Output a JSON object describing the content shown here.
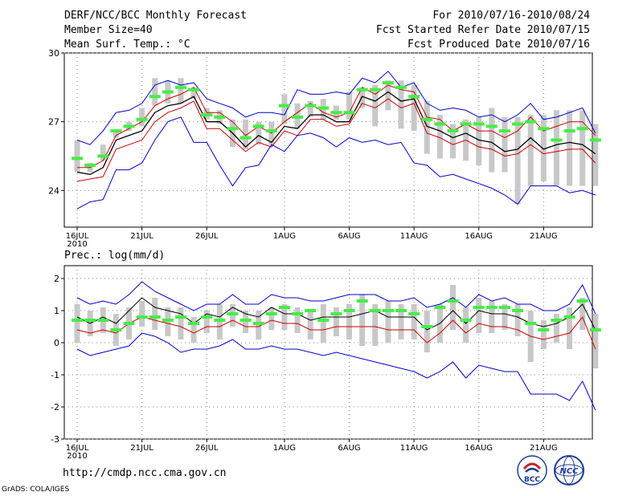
{
  "header": {
    "title": "DERF/NCC/BCC Monthly Forecast",
    "member_size": "Member Size=40",
    "variable": "Mean Surf. Temp.: °C",
    "period": "For 2010/07/16-2010/08/24",
    "started": "Fcst Started Refer Date 2010/07/15",
    "produced": "Fcst Produced Date 2010/07/16"
  },
  "footer": {
    "url": "http://cmdp.ncc.cma.gov.cn",
    "credit": "GrADS: COLA/IGES",
    "logo_left_text": "BCC",
    "logo_right_text": "NCC"
  },
  "colors": {
    "envelope": "#0000cc",
    "ensemble_mean": "#000000",
    "second_line": "#cc0000",
    "bars": "#c8c8c8",
    "dash": "#44ee44"
  },
  "chart_data": [
    {
      "type": "line",
      "title": "Mean Surf. Temp.: °C",
      "xlabel": "",
      "ylabel": "°C",
      "ylim": [
        22.4,
        30
      ],
      "yticks": [
        24,
        27,
        30
      ],
      "x_start_day": 1,
      "xticks": [
        {
          "day": 1,
          "label": "16JUL",
          "sub": "2010"
        },
        {
          "day": 6,
          "label": "21JUL",
          "sub": ""
        },
        {
          "day": 11,
          "label": "26JUL",
          "sub": ""
        },
        {
          "day": 17,
          "label": "1AUG",
          "sub": ""
        },
        {
          "day": 22,
          "label": "6AUG",
          "sub": ""
        },
        {
          "day": 27,
          "label": "11AUG",
          "sub": ""
        },
        {
          "day": 32,
          "label": "16AUG",
          "sub": ""
        },
        {
          "day": 37,
          "label": "21AUG",
          "sub": ""
        }
      ],
      "grid": "dotted",
      "series": [
        {
          "name": "max",
          "color": "#0000cc",
          "values": [
            26.2,
            26.0,
            26.6,
            27.4,
            27.5,
            27.8,
            28.6,
            28.8,
            28.6,
            28.7,
            28.0,
            27.8,
            27.6,
            27.2,
            27.4,
            27.4,
            27.3,
            28.4,
            28.2,
            28.2,
            28.3,
            28.2,
            28.9,
            28.7,
            29.2,
            28.5,
            28.7,
            27.8,
            27.5,
            27.6,
            27.5,
            27.2,
            27.3,
            27.0,
            27.3,
            27.8,
            27.1,
            27.2,
            27.4,
            27.6,
            26.5
          ]
        },
        {
          "name": "upper",
          "color": "#cc0000",
          "values": [
            25.0,
            25.0,
            25.3,
            26.4,
            26.7,
            27.0,
            27.7,
            28.0,
            28.2,
            28.5,
            27.4,
            27.4,
            27.0,
            26.4,
            26.8,
            26.5,
            27.0,
            27.4,
            27.8,
            27.4,
            27.2,
            27.4,
            28.5,
            28.2,
            28.6,
            28.4,
            28.3,
            27.2,
            27.1,
            26.6,
            26.9,
            26.6,
            26.6,
            26.3,
            26.6,
            27.2,
            26.6,
            26.8,
            27.0,
            27.0,
            26.4
          ]
        },
        {
          "name": "mean",
          "color": "#000000",
          "values": [
            24.8,
            24.7,
            25.0,
            26.2,
            26.4,
            26.6,
            27.4,
            27.7,
            27.8,
            28.1,
            27.0,
            27.0,
            26.5,
            25.9,
            26.4,
            26.1,
            26.8,
            26.7,
            27.3,
            27.3,
            27.0,
            27.0,
            28.1,
            27.9,
            28.3,
            27.9,
            28.0,
            26.8,
            26.6,
            26.3,
            26.5,
            26.2,
            26.1,
            25.7,
            25.8,
            26.3,
            25.8,
            26.0,
            26.1,
            26.0,
            25.6
          ]
        },
        {
          "name": "lower",
          "color": "#cc0000",
          "values": [
            24.4,
            24.5,
            24.6,
            25.8,
            26.0,
            26.2,
            27.0,
            27.4,
            27.6,
            27.9,
            26.7,
            26.7,
            26.2,
            25.7,
            26.1,
            25.9,
            26.6,
            26.4,
            27.1,
            27.1,
            26.8,
            26.9,
            27.8,
            27.6,
            28.0,
            27.6,
            27.8,
            26.5,
            26.3,
            26.0,
            26.2,
            25.9,
            25.8,
            25.5,
            25.6,
            26.0,
            25.6,
            25.7,
            25.8,
            25.8,
            25.2
          ]
        },
        {
          "name": "min",
          "color": "#0000cc",
          "values": [
            23.2,
            23.5,
            23.6,
            24.9,
            24.9,
            25.2,
            26.2,
            27.0,
            27.2,
            26.1,
            26.1,
            25.1,
            24.2,
            25.0,
            25.1,
            26.0,
            25.7,
            26.4,
            26.5,
            26.3,
            25.9,
            26.3,
            26.1,
            26.2,
            26.0,
            26.1,
            25.2,
            25.1,
            24.6,
            24.7,
            24.5,
            24.3,
            24.1,
            23.8,
            23.4,
            24.2,
            24.2,
            24.2,
            23.9,
            24.0,
            23.8
          ]
        }
      ],
      "bars": {
        "low": [
          24.8,
          24.8,
          25.3,
          26.3,
          26.6,
          26.8,
          27.7,
          27.8,
          27.8,
          28.0,
          27.1,
          26.9,
          25.9,
          25.8,
          26.0,
          26.0,
          26.9,
          26.7,
          27.2,
          27.1,
          27.1,
          27.1,
          27.6,
          26.8,
          27.5,
          26.7,
          26.6,
          25.6,
          25.4,
          25.4,
          25.3,
          25.1,
          24.8,
          24.8,
          23.4,
          24.2,
          24.4,
          24.2,
          24.2,
          24.2,
          24.2
        ],
        "high": [
          26.2,
          25.2,
          26.0,
          26.6,
          27.0,
          27.6,
          28.9,
          28.8,
          28.9,
          28.5,
          27.6,
          27.5,
          27.1,
          27.1,
          27.0,
          27.0,
          28.2,
          27.8,
          27.9,
          28.0,
          27.7,
          28.3,
          28.5,
          28.6,
          28.8,
          28.8,
          28.6,
          27.9,
          27.3,
          26.9,
          27.1,
          27.2,
          27.6,
          27.2,
          27.2,
          27.3,
          27.3,
          27.5,
          27.5,
          27.5,
          26.9
        ]
      },
      "dashes": [
        25.4,
        25.1,
        25.5,
        26.6,
        26.8,
        27.1,
        28.1,
        28.3,
        28.5,
        28.4,
        27.3,
        27.2,
        26.7,
        26.3,
        26.8,
        26.6,
        27.7,
        27.2,
        27.7,
        27.6,
        27.4,
        27.4,
        28.4,
        28.4,
        28.7,
        28.5,
        28.1,
        27.1,
        26.9,
        26.6,
        26.9,
        26.9,
        26.8,
        26.6,
        26.9,
        27.0,
        26.7,
        26.2,
        26.6,
        26.7,
        26.2
      ]
    },
    {
      "type": "line",
      "title": "Prec.: log(mm/d)",
      "xlabel": "",
      "ylabel": "log(mm/d)",
      "ylim": [
        -3,
        2.4
      ],
      "yticks": [
        -3,
        -2,
        -1,
        0,
        1,
        2
      ],
      "x_start_day": 1,
      "xticks": [
        {
          "day": 1,
          "label": "16JUL",
          "sub": "2010"
        },
        {
          "day": 6,
          "label": "21JUL",
          "sub": ""
        },
        {
          "day": 11,
          "label": "26JUL",
          "sub": ""
        },
        {
          "day": 17,
          "label": "1AUG",
          "sub": ""
        },
        {
          "day": 22,
          "label": "6AUG",
          "sub": ""
        },
        {
          "day": 27,
          "label": "11AUG",
          "sub": ""
        },
        {
          "day": 32,
          "label": "16AUG",
          "sub": ""
        },
        {
          "day": 37,
          "label": "21AUG",
          "sub": ""
        }
      ],
      "grid": "dotted",
      "series": [
        {
          "name": "max",
          "color": "#0000cc",
          "values": [
            1.4,
            1.2,
            1.3,
            1.2,
            1.5,
            1.9,
            1.6,
            1.4,
            1.2,
            1.0,
            1.2,
            1.2,
            1.5,
            1.2,
            1.2,
            1.5,
            1.4,
            1.4,
            1.3,
            1.3,
            1.4,
            1.5,
            1.5,
            1.5,
            1.3,
            1.3,
            1.4,
            1.1,
            1.2,
            1.4,
            1.1,
            1.5,
            1.3,
            1.4,
            1.2,
            1.2,
            1.0,
            1.0,
            1.2,
            1.8,
            0.9
          ]
        },
        {
          "name": "upper",
          "color": "#000000",
          "values": [
            0.8,
            0.6,
            0.8,
            0.6,
            1.0,
            1.4,
            1.1,
            1.0,
            0.9,
            0.6,
            0.9,
            0.8,
            1.1,
            0.9,
            0.8,
            1.1,
            0.9,
            0.9,
            0.7,
            0.8,
            0.8,
            0.8,
            0.9,
            1.0,
            0.8,
            0.8,
            0.8,
            0.4,
            0.6,
            1.0,
            0.6,
            1.0,
            0.9,
            0.9,
            0.8,
            0.6,
            0.5,
            0.6,
            0.8,
            1.2,
            0.4
          ]
        },
        {
          "name": "lower",
          "color": "#cc0000",
          "values": [
            0.4,
            0.3,
            0.4,
            0.3,
            0.6,
            0.8,
            0.7,
            0.6,
            0.5,
            0.3,
            0.5,
            0.5,
            0.7,
            0.5,
            0.5,
            0.7,
            0.6,
            0.6,
            0.4,
            0.4,
            0.5,
            0.5,
            0.5,
            0.5,
            0.4,
            0.4,
            0.4,
            0.0,
            0.3,
            0.7,
            0.3,
            0.6,
            0.5,
            0.5,
            0.4,
            0.2,
            0.1,
            0.2,
            0.3,
            0.8,
            -0.2
          ]
        },
        {
          "name": "min",
          "color": "#0000cc",
          "values": [
            -0.2,
            -0.4,
            -0.3,
            -0.2,
            -0.1,
            0.3,
            0.2,
            0.0,
            -0.3,
            -0.2,
            -0.2,
            -0.1,
            0.1,
            -0.2,
            -0.2,
            -0.1,
            -0.2,
            -0.2,
            -0.3,
            -0.4,
            -0.3,
            -0.4,
            -0.5,
            -0.6,
            -0.7,
            -0.8,
            -0.9,
            -1.1,
            -0.9,
            -0.6,
            -1.1,
            -0.7,
            -0.8,
            -0.9,
            -0.9,
            -1.6,
            -1.6,
            -1.6,
            -1.8,
            -1.2,
            -2.1
          ]
        }
      ],
      "bars": {
        "low": [
          0.0,
          0.2,
          0.3,
          -0.1,
          0.1,
          0.5,
          0.4,
          0.2,
          0.1,
          0.0,
          0.3,
          0.1,
          0.5,
          0.3,
          0.1,
          0.4,
          0.4,
          0.3,
          0.1,
          0.0,
          0.2,
          0.1,
          -0.1,
          -0.1,
          0.0,
          0.1,
          0.1,
          -0.3,
          0.0,
          0.4,
          0.0,
          0.3,
          0.3,
          0.4,
          0.2,
          -0.6,
          -0.2,
          0.0,
          -0.2,
          0.4,
          -0.8
        ],
        "high": [
          1.2,
          1.0,
          1.1,
          0.9,
          1.1,
          1.3,
          1.4,
          1.1,
          1.1,
          0.8,
          1.0,
          1.2,
          1.2,
          1.0,
          1.0,
          1.1,
          1.2,
          1.1,
          1.0,
          1.2,
          1.1,
          1.2,
          1.5,
          1.2,
          1.3,
          1.2,
          1.2,
          1.0,
          1.2,
          1.8,
          1.1,
          1.4,
          1.3,
          1.2,
          1.2,
          1.0,
          0.7,
          0.9,
          1.1,
          1.4,
          0.9
        ]
      },
      "dashes": [
        0.7,
        0.7,
        0.7,
        0.4,
        0.6,
        0.8,
        0.8,
        0.7,
        0.8,
        0.6,
        0.8,
        0.7,
        0.9,
        0.7,
        0.6,
        0.9,
        1.1,
        0.9,
        1.0,
        0.7,
        0.9,
        1.0,
        1.3,
        1.0,
        1.0,
        1.0,
        0.9,
        0.5,
        1.1,
        1.3,
        0.7,
        1.1,
        1.1,
        1.1,
        1.0,
        0.6,
        0.4,
        0.7,
        0.8,
        1.3,
        0.4
      ]
    }
  ]
}
